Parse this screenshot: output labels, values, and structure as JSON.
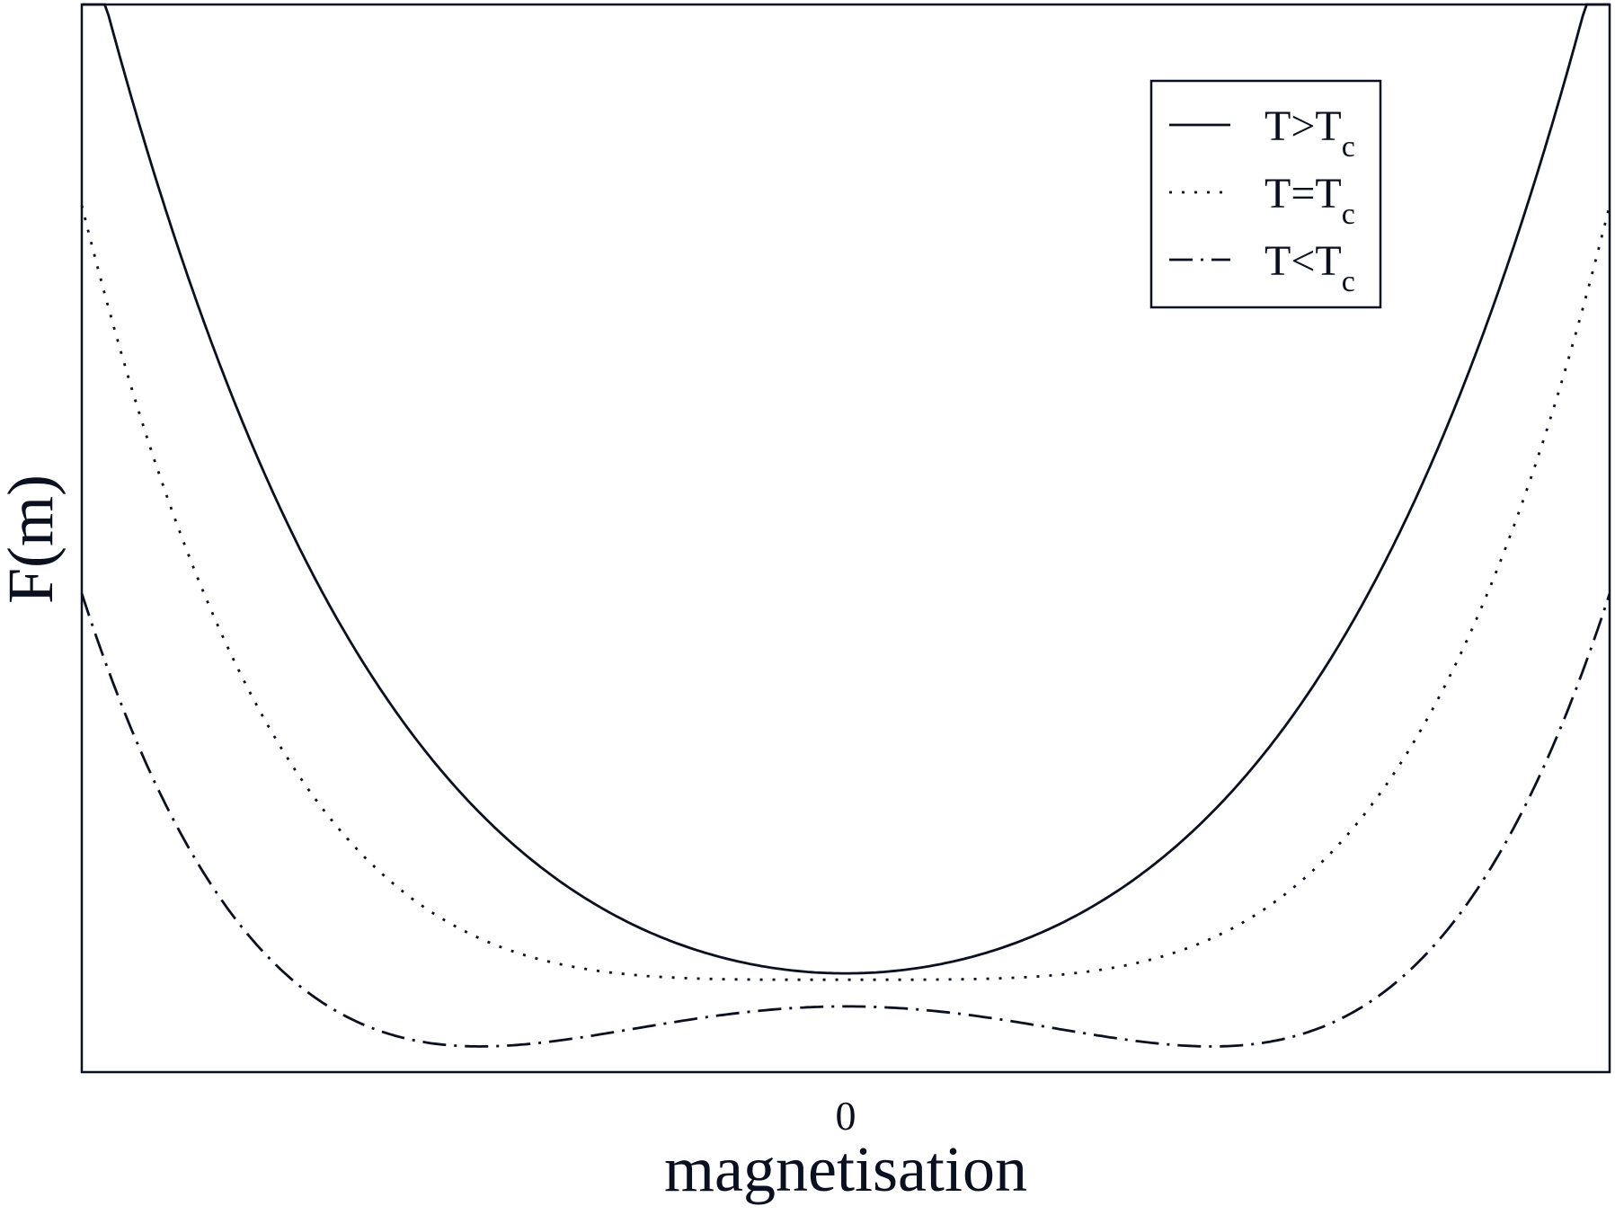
{
  "chart_data": {
    "type": "line",
    "title": "",
    "xlabel": "magnetisation",
    "ylabel": "F(m)",
    "x_ticks": [
      {
        "value": 0,
        "label": "0"
      }
    ],
    "xlim": [
      -1,
      1
    ],
    "ylim": [
      -0.2,
      2.08
    ],
    "grid": false,
    "legend_position": "top-right",
    "series": [
      {
        "name": "T>T",
        "name_sub": "c",
        "style": "solid",
        "color": "#0b1020",
        "x": [
          -1.0,
          -0.8,
          -0.6,
          -0.4,
          -0.2,
          0.0,
          0.2,
          0.4,
          0.6,
          0.8,
          1.0
        ],
        "y": [
          2.28,
          1.22,
          0.6,
          0.25,
          0.06,
          0.0,
          0.06,
          0.25,
          0.6,
          1.22,
          2.28
        ]
      },
      {
        "name": "T=T",
        "name_sub": "c",
        "style": "dotted",
        "color": "#0b1020",
        "x": [
          -1.0,
          -0.8,
          -0.6,
          -0.4,
          -0.2,
          0.0,
          0.2,
          0.4,
          0.6,
          0.8,
          1.0
        ],
        "y": [
          1.65,
          0.68,
          0.21,
          0.04,
          0.0,
          0.0,
          0.0,
          0.04,
          0.21,
          0.68,
          1.65
        ]
      },
      {
        "name": "T<T",
        "name_sub": "c",
        "style": "dash-dot",
        "color": "#0b1020",
        "x": [
          -1.0,
          -0.8,
          -0.6,
          -0.4,
          -0.2,
          0.0,
          0.2,
          0.4,
          0.6,
          0.8,
          1.0
        ],
        "y": [
          0.8,
          0.2,
          -0.16,
          -0.19,
          -0.07,
          0.0,
          -0.07,
          -0.19,
          -0.16,
          0.2,
          0.8
        ]
      }
    ]
  }
}
